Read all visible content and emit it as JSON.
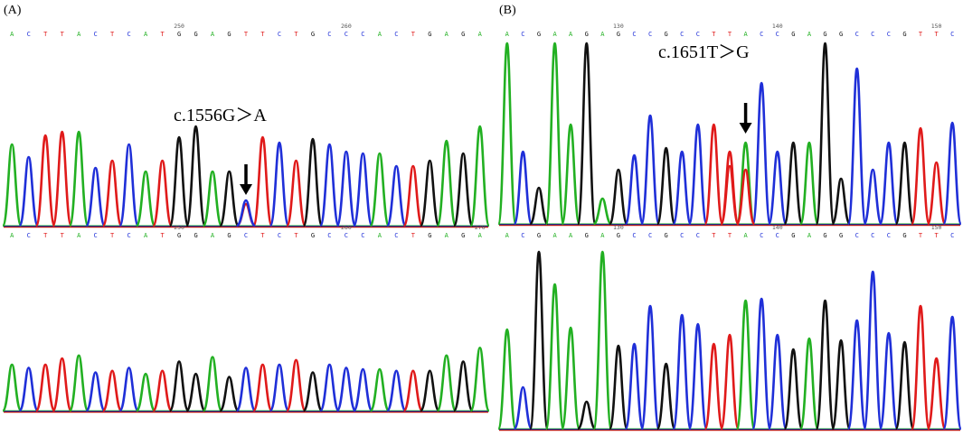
{
  "colors": {
    "A": "#22b022",
    "C": "#1f2fd8",
    "G": "#111111",
    "T": "#e01a1a"
  },
  "panels": [
    {
      "label": "(A)",
      "mutation": "c.1556G>A",
      "mutation_display": "c.1556G＞A",
      "top": {
        "sequence": "ACTTACTCATGGAGTTCTGCCCACTGAGA",
        "positions": [
          {
            "label": "250",
            "index": 10
          },
          {
            "label": "260",
            "index": 20
          }
        ],
        "heights": [
          0.45,
          0.38,
          0.5,
          0.52,
          0.52,
          0.32,
          0.36,
          0.45,
          0.3,
          0.36,
          0.49,
          0.55,
          0.3,
          0.3,
          0.12,
          0.49,
          0.46,
          0.36,
          0.48,
          0.45,
          0.41,
          0.4,
          0.4,
          0.33,
          0.33,
          0.36,
          0.47,
          0.4,
          0.55
        ],
        "overlay": [
          {
            "index": 14,
            "base": "C",
            "height": 0.14
          }
        ],
        "arrow_index": 14
      },
      "bottom": {
        "sequence": "ACTTACTCATGGAGCTCTGCCCACTGAGA",
        "positions": [
          {
            "label": "250",
            "index": 10
          },
          {
            "label": "260",
            "index": 20
          },
          {
            "label": "270",
            "index": 28
          }
        ],
        "heights": [
          0.3,
          0.28,
          0.3,
          0.34,
          0.36,
          0.25,
          0.26,
          0.28,
          0.24,
          0.26,
          0.32,
          0.24,
          0.35,
          0.22,
          0.28,
          0.3,
          0.3,
          0.33,
          0.25,
          0.3,
          0.28,
          0.27,
          0.27,
          0.26,
          0.26,
          0.26,
          0.36,
          0.32,
          0.41
        ],
        "overlay": [],
        "arrow_index": null
      }
    },
    {
      "label": "(B)",
      "mutation": "c.1651T>G",
      "mutation_display": "c.1651T＞G",
      "top": {
        "sequence": "ACGAAGAGCCGCCTTACCGAGGCCCGTTC",
        "positions": [
          {
            "label": "130",
            "index": 7
          },
          {
            "label": "140",
            "index": 17
          },
          {
            "label": "150",
            "index": 27
          }
        ],
        "heights": [
          1.0,
          0.4,
          0.2,
          1.0,
          0.55,
          1.0,
          0.14,
          0.3,
          0.38,
          0.6,
          0.42,
          0.4,
          0.55,
          0.55,
          0.32,
          0.45,
          0.78,
          0.4,
          0.45,
          0.45,
          1.0,
          0.25,
          0.86,
          0.3,
          0.45,
          0.45,
          0.53,
          0.34,
          0.56
        ],
        "overlay": [
          {
            "index": 14,
            "base": "T",
            "height": 0.4
          },
          {
            "index": 15,
            "base": "T",
            "height": 0.3
          }
        ],
        "arrow_index": 15
      },
      "bottom": {
        "sequence": "ACGAAGAGCCGCCTTACCGAGGCCCGTTC",
        "positions": [
          {
            "label": "130",
            "index": 7
          },
          {
            "label": "140",
            "index": 17
          },
          {
            "label": "150",
            "index": 27
          }
        ],
        "heights": [
          0.55,
          0.23,
          0.98,
          0.8,
          0.56,
          0.15,
          0.98,
          0.46,
          0.47,
          0.68,
          0.36,
          0.63,
          0.58,
          0.47,
          0.52,
          0.71,
          0.72,
          0.52,
          0.44,
          0.5,
          0.71,
          0.49,
          0.6,
          0.87,
          0.53,
          0.48,
          0.68,
          0.39,
          0.62
        ],
        "overlay": [],
        "arrow_index": null
      }
    }
  ]
}
